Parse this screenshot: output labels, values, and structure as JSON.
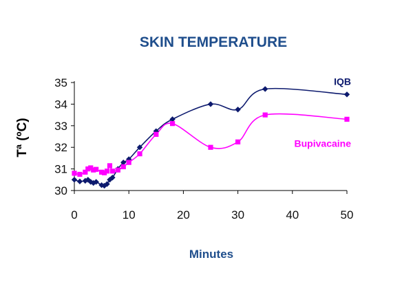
{
  "chart_data": {
    "type": "line",
    "title": "SKIN TEMPERATURE",
    "xlabel": "Minutes",
    "ylabel": "Tª (ºC)",
    "xlim": [
      0,
      50
    ],
    "ylim": [
      30,
      35
    ],
    "x_ticks": [
      0,
      10,
      20,
      30,
      40,
      50
    ],
    "y_ticks": [
      30,
      31,
      32,
      33,
      34,
      35
    ],
    "grid": false,
    "legend": "inline labels at right",
    "colors": {
      "title": "#1f4e8c",
      "axis_title": "#1f4e8c",
      "axis": "#000000"
    },
    "series": [
      {
        "name": "IQB",
        "color": "#0d1a6e",
        "marker": "diamond",
        "smooth": true,
        "points": [
          [
            0,
            30.5
          ],
          [
            1,
            30.42
          ],
          [
            2,
            30.45
          ],
          [
            2.5,
            30.5
          ],
          [
            3,
            30.4
          ],
          [
            3.5,
            30.35
          ],
          [
            4,
            30.4
          ],
          [
            5,
            30.25
          ],
          [
            5.5,
            30.22
          ],
          [
            6,
            30.3
          ],
          [
            6.5,
            30.5
          ],
          [
            7,
            30.6
          ],
          [
            8,
            31.0
          ],
          [
            9,
            31.3
          ],
          [
            10,
            31.45
          ],
          [
            12,
            32.0
          ],
          [
            15,
            32.75
          ],
          [
            18,
            33.3
          ],
          [
            25,
            34.0
          ],
          [
            30,
            33.75
          ],
          [
            35,
            34.7
          ],
          [
            50,
            34.45
          ]
        ]
      },
      {
        "name": "Bupivacaine",
        "color": "#ff00ff",
        "marker": "square",
        "smooth": true,
        "points": [
          [
            0,
            30.8
          ],
          [
            1,
            30.75
          ],
          [
            2,
            30.85
          ],
          [
            2.5,
            31.0
          ],
          [
            3,
            31.05
          ],
          [
            3.5,
            30.95
          ],
          [
            4,
            30.98
          ],
          [
            5,
            30.85
          ],
          [
            5.5,
            30.82
          ],
          [
            6,
            30.9
          ],
          [
            6.5,
            31.15
          ],
          [
            7,
            30.9
          ],
          [
            8,
            30.95
          ],
          [
            9,
            31.1
          ],
          [
            10,
            31.3
          ],
          [
            12,
            31.7
          ],
          [
            15,
            32.6
          ],
          [
            18,
            33.1
          ],
          [
            25,
            32.0
          ],
          [
            30,
            32.25
          ],
          [
            35,
            33.5
          ],
          [
            50,
            33.3
          ]
        ]
      }
    ]
  }
}
